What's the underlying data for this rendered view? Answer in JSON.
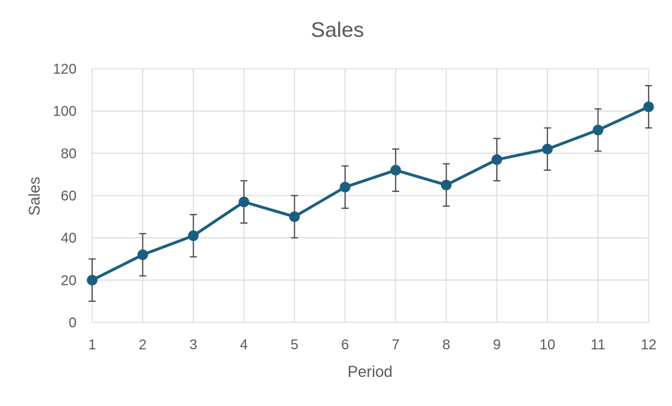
{
  "chart_data": {
    "type": "line",
    "title": "Sales",
    "xlabel": "Period",
    "ylabel": "Sales",
    "x": [
      1,
      2,
      3,
      4,
      5,
      6,
      7,
      8,
      9,
      10,
      11,
      12
    ],
    "series": [
      {
        "values": [
          20,
          32,
          41,
          57,
          50,
          64,
          72,
          65,
          77,
          82,
          91,
          102
        ],
        "error": 10,
        "color": "#1b5e7f"
      }
    ],
    "ylim": [
      0,
      120
    ],
    "yticks": [
      0,
      20,
      40,
      60,
      80,
      100,
      120
    ],
    "xlim": [
      1,
      12
    ],
    "grid": true,
    "gridColor": "#d9d9d9",
    "errorBarColor": "#404040",
    "legend": "none"
  }
}
